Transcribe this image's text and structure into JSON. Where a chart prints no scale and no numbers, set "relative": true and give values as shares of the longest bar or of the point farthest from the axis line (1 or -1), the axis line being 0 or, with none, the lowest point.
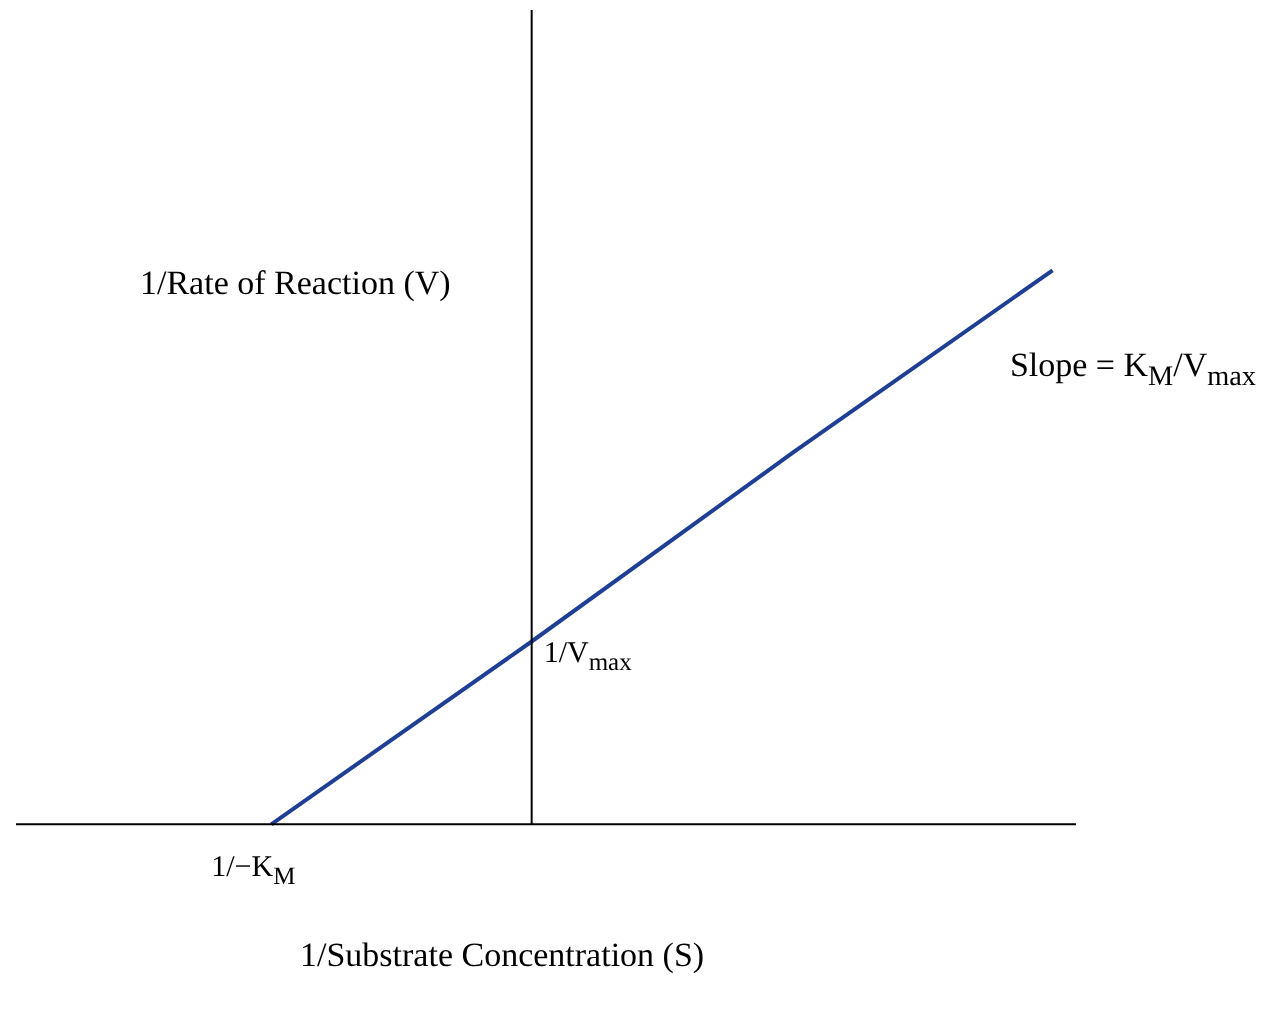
{
  "chart_data": {
    "type": "line",
    "relative": true,
    "xlabel": "1/Substrate Concentration (S)",
    "ylabel": "1/Rate of Reaction (V)",
    "categories": [
      null,
      null,
      null,
      null
    ],
    "series": [
      {
        "color": "#1f3f94",
        "values": [
          0,
          0.33,
          0.67,
          1
        ]
      }
    ],
    "marker": "none",
    "annotations": [
      "1/−K$_{M}$",
      "1/V$_{max}$",
      "Slope = K$_{M}$/V$_{max}$"
    ]
  }
}
